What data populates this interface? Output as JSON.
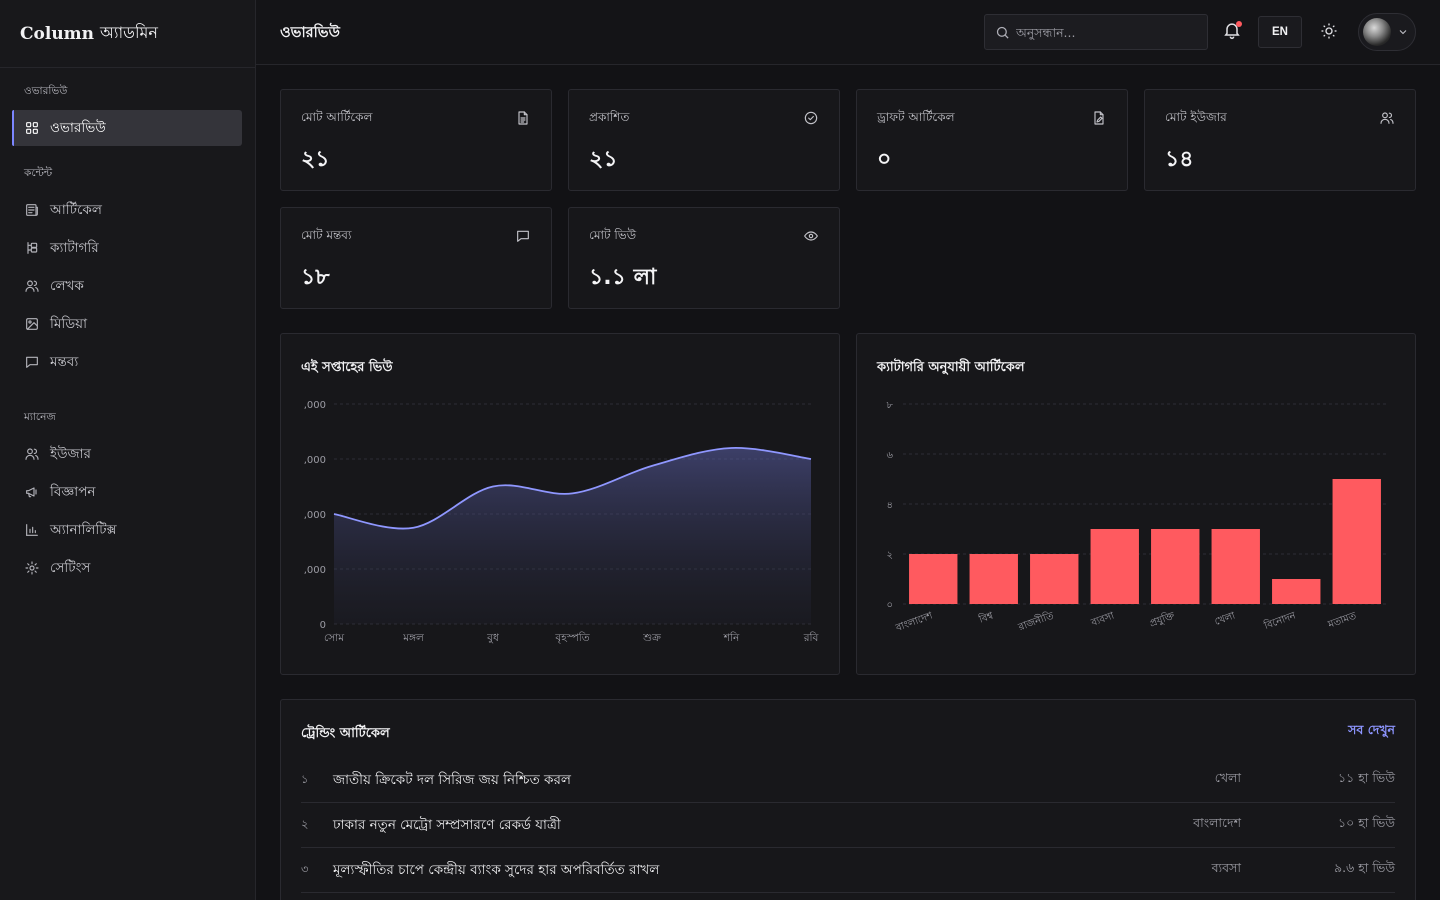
{
  "brand": {
    "name": "Column",
    "sub": "অ্যাডমিন"
  },
  "colors": {
    "accent": "#7c86ff",
    "bar": "#ff5a5f",
    "line": "#8f97ff"
  },
  "sidebar": {
    "sections": [
      {
        "heading": "ওভারভিউ",
        "items": [
          {
            "label": "ওভারভিউ",
            "icon": "grid-icon",
            "active": true
          }
        ]
      },
      {
        "heading": "কন্টেন্ট",
        "items": [
          {
            "label": "আর্টিকেল",
            "icon": "newspaper-icon"
          },
          {
            "label": "ক্যাটাগরি",
            "icon": "category-tree-icon"
          },
          {
            "label": "লেখক",
            "icon": "users-icon"
          },
          {
            "label": "মিডিয়া",
            "icon": "image-icon"
          },
          {
            "label": "মন্তব্য",
            "icon": "comment-icon"
          }
        ]
      },
      {
        "heading": "ম্যানেজ",
        "items": [
          {
            "label": "ইউজার",
            "icon": "users-icon"
          },
          {
            "label": "বিজ্ঞাপন",
            "icon": "megaphone-icon"
          },
          {
            "label": "অ্যানালিটিক্স",
            "icon": "bar-chart-icon"
          },
          {
            "label": "সেটিংস",
            "icon": "gear-icon"
          }
        ]
      }
    ]
  },
  "header": {
    "title": "ওভারভিউ",
    "search_placeholder": "অনুসন্ধান...",
    "lang": "EN"
  },
  "stats": [
    {
      "label": "মোট আর্টিকেল",
      "value": "২১",
      "icon": "file-text-icon"
    },
    {
      "label": "প্রকাশিত",
      "value": "২১",
      "icon": "check-circle-icon"
    },
    {
      "label": "ড্রাফট আর্টিকেল",
      "value": "০",
      "icon": "file-edit-icon"
    },
    {
      "label": "মোট ইউজার",
      "value": "১৪",
      "icon": "users-icon"
    },
    {
      "label": "মোট মন্তব্য",
      "value": "১৮",
      "icon": "comment-icon"
    },
    {
      "label": "মোট ভিউ",
      "value": "১.১ লা",
      "icon": "eye-icon"
    }
  ],
  "charts": {
    "views": {
      "title": "এই সপ্তাহের ভিউ",
      "chart_data": {
        "type": "area",
        "categories": [
          "সোম",
          "মঙ্গল",
          "বুধ",
          "বৃহস্পতি",
          "শুক্র",
          "শনি",
          "রবি"
        ],
        "values": [
          8000,
          7000,
          10000,
          9500,
          11500,
          12800,
          12000
        ],
        "ytick_labels": [
          "0",
          ",000",
          ",000",
          ",000",
          ",000"
        ],
        "ylim": [
          0,
          16000
        ]
      }
    },
    "categories": {
      "title": "ক্যাটাগরি অনুযায়ী আর্টিকেল",
      "chart_data": {
        "type": "bar",
        "categories": [
          "বাংলাদেশ",
          "বিশ্ব",
          "রাজনীতি",
          "ব্যবসা",
          "প্রযুক্তি",
          "খেলা",
          "বিনোদন",
          "মতামত"
        ],
        "values": [
          2,
          2,
          2,
          3,
          3,
          3,
          1,
          5
        ],
        "ytick_labels": [
          "০",
          "২",
          "৪",
          "৬",
          "৮"
        ],
        "ylim": [
          0,
          8
        ]
      }
    }
  },
  "trending": {
    "title": "ট্রেন্ডিং আর্টিকেল",
    "view_all": "সব দেখুন",
    "rows": [
      {
        "rank": "১",
        "title": "জাতীয় ক্রিকেট দল সিরিজ জয় নিশ্চিত করল",
        "category": "খেলা",
        "views": "১১ হা ভিউ"
      },
      {
        "rank": "২",
        "title": "ঢাকার নতুন মেট্রো সম্প্রসারণে রেকর্ড যাত্রী",
        "category": "বাংলাদেশ",
        "views": "১০ হা ভিউ"
      },
      {
        "rank": "৩",
        "title": "মূল্যস্ফীতির চাপে কেন্দ্রীয় ব্যাংক সুদের হার অপরিবর্তিত রাখল",
        "category": "ব্যবসা",
        "views": "৯.৬ হা ভিউ"
      }
    ]
  }
}
